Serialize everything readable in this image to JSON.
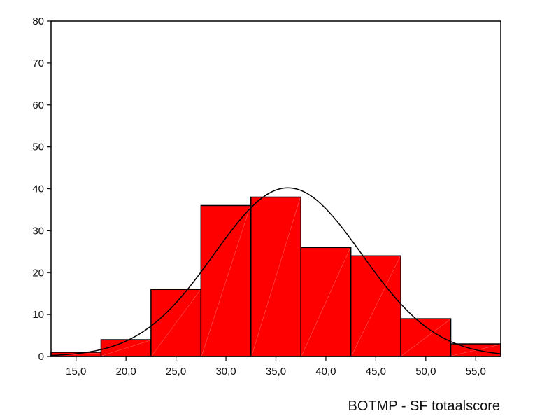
{
  "chart_data": {
    "type": "bar",
    "subtype": "histogram",
    "title": "",
    "xlabel": "BOTMP - SF totaalscore",
    "ylabel": "",
    "ylim": [
      0,
      80
    ],
    "xlim": [
      12.5,
      57.5
    ],
    "bin_width": 5,
    "y_ticks": [
      "0",
      "10",
      "20",
      "30",
      "40",
      "50",
      "60",
      "70",
      "80"
    ],
    "y_tick_values": [
      0,
      10,
      20,
      30,
      40,
      50,
      60,
      70,
      80
    ],
    "x_ticks": [
      "15,0",
      "20,0",
      "25,0",
      "30,0",
      "35,0",
      "40,0",
      "45,0",
      "50,0",
      "55,0"
    ],
    "x_tick_values": [
      15,
      20,
      25,
      30,
      35,
      40,
      45,
      50,
      55
    ],
    "bins": [
      {
        "center": 15,
        "value": 1
      },
      {
        "center": 20,
        "value": 4
      },
      {
        "center": 25,
        "value": 16
      },
      {
        "center": 30,
        "value": 36
      },
      {
        "center": 35,
        "value": 38
      },
      {
        "center": 40,
        "value": 26
      },
      {
        "center": 45,
        "value": 24
      },
      {
        "center": 50,
        "value": 9
      },
      {
        "center": 55,
        "value": 3
      }
    ],
    "normal_curve": {
      "mean": 36.2,
      "peak": 40.2,
      "sd": 7.4
    },
    "bar_color": "#ff0000",
    "grid": false
  }
}
